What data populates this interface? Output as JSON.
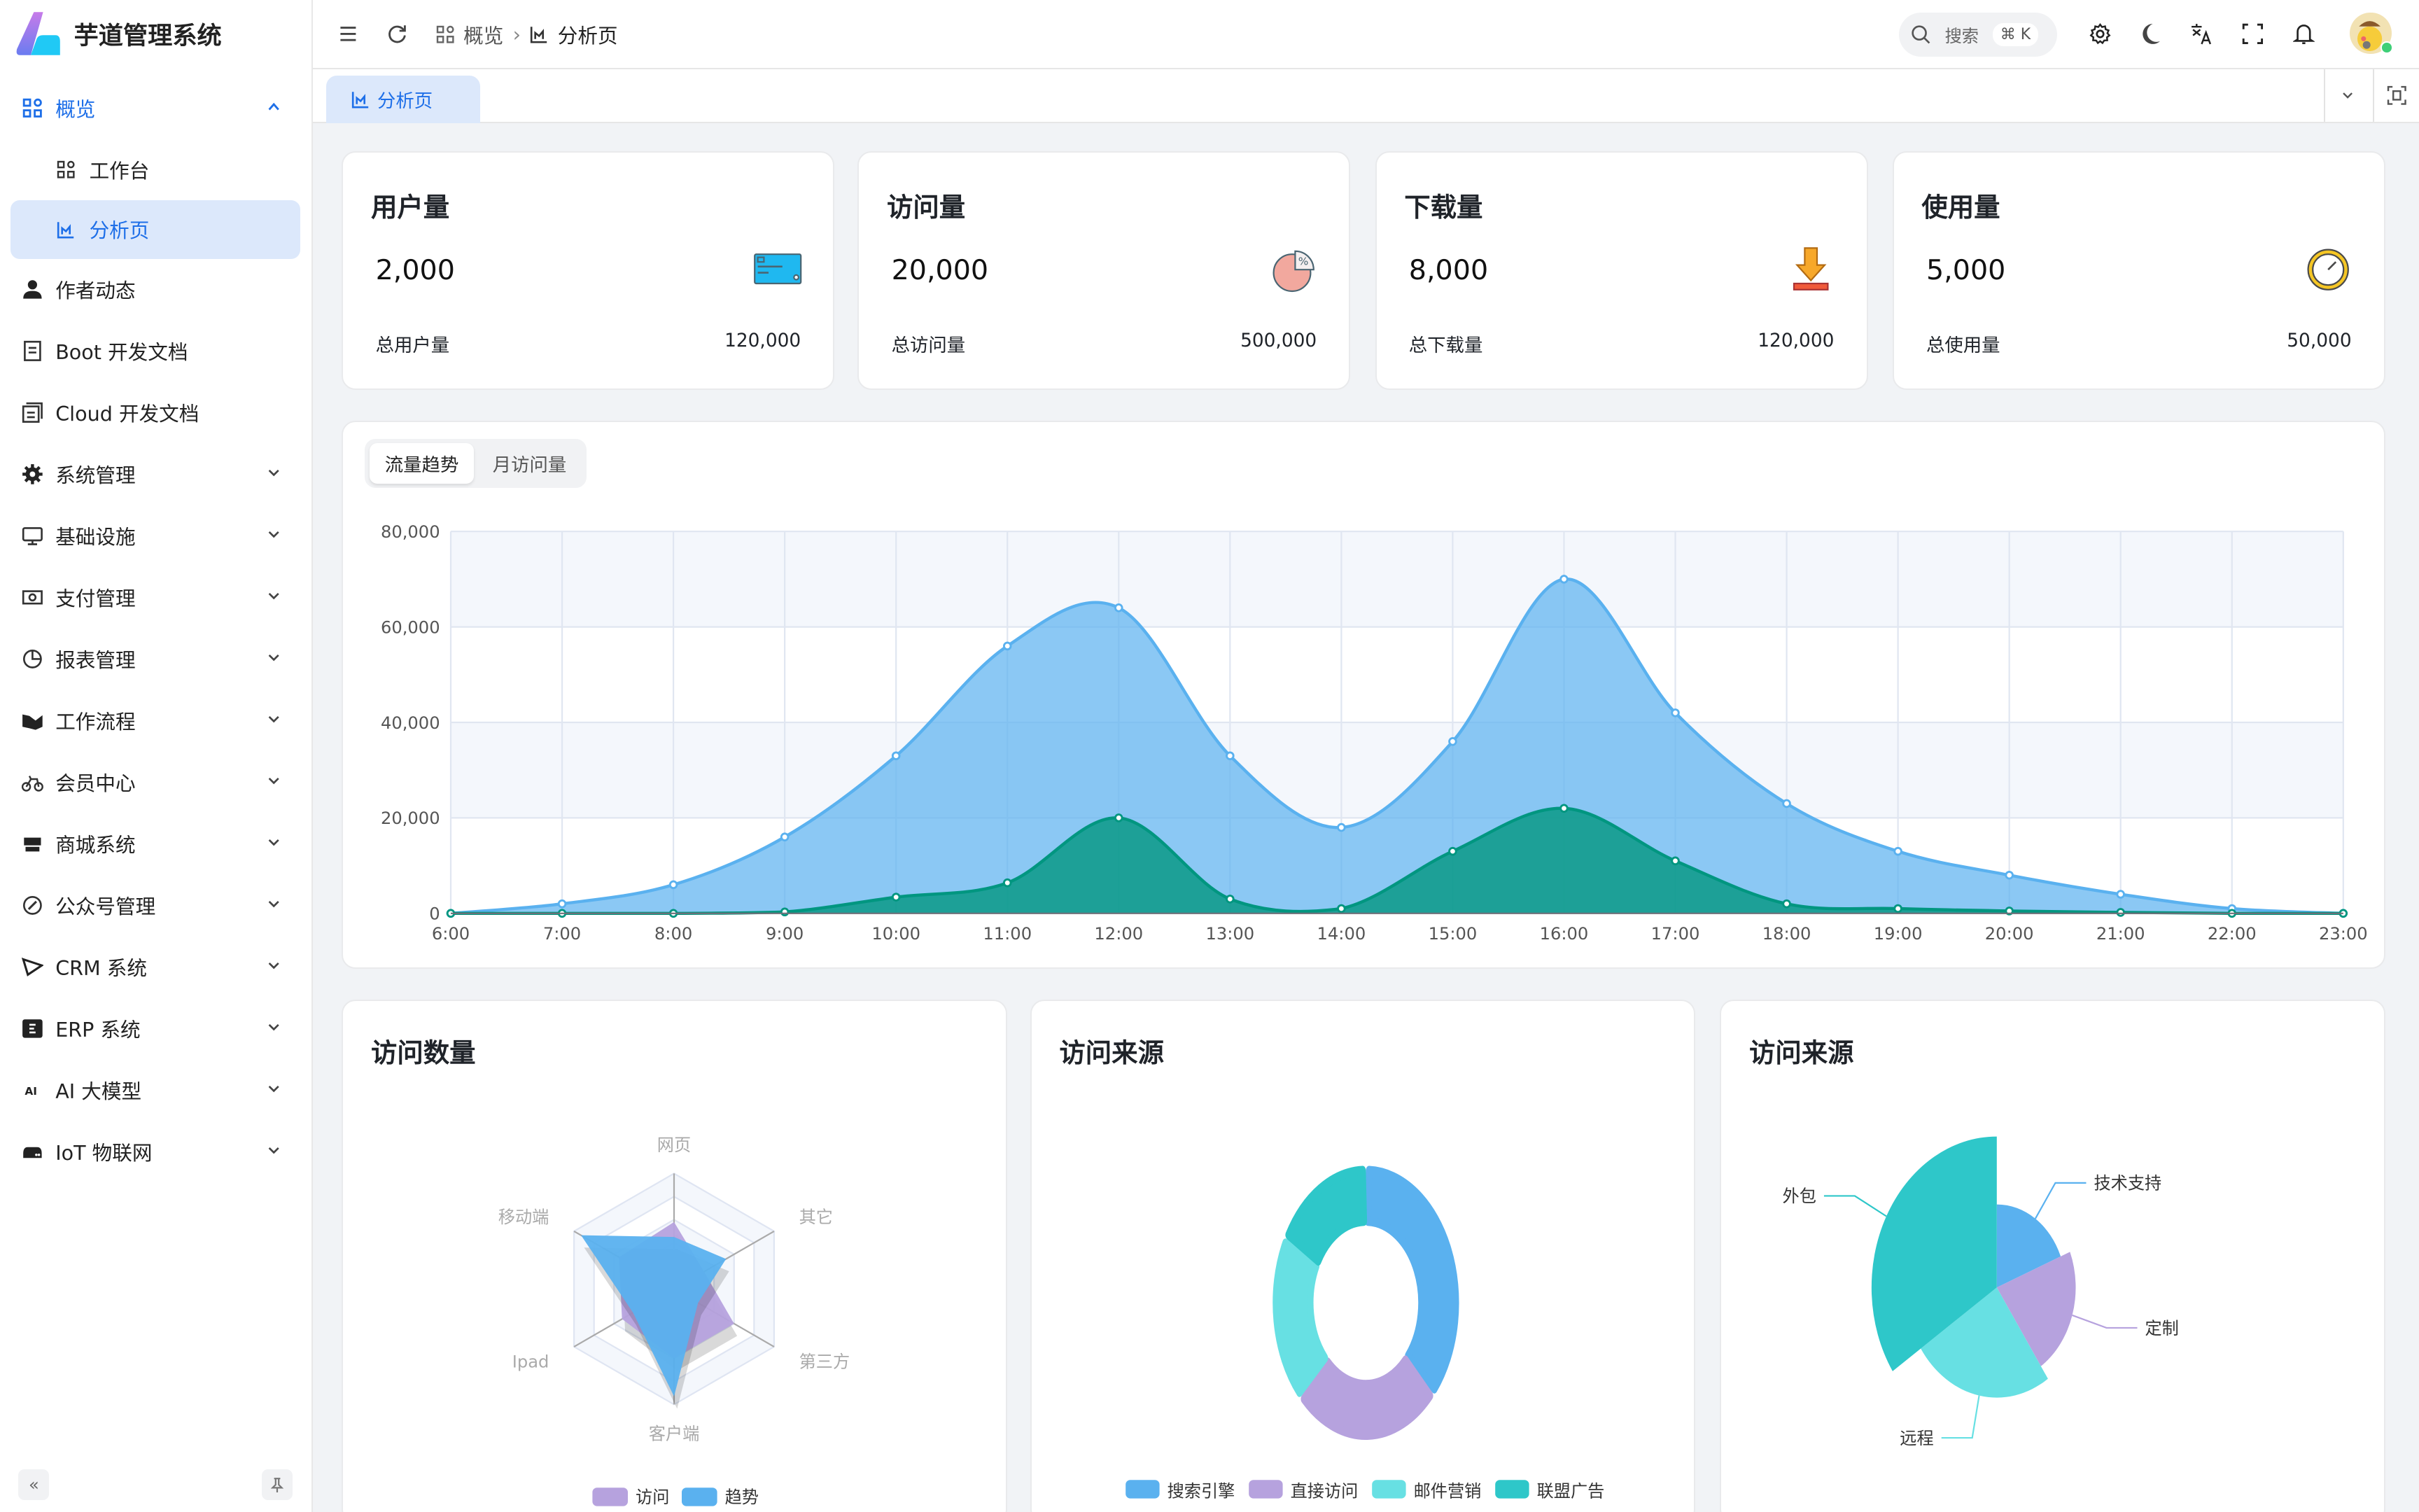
{
  "app": {
    "title": "芋道管理系统"
  },
  "sidebar": {
    "items": [
      {
        "label": "概览",
        "icon": "dashboard-icon",
        "expanded": true,
        "children": [
          {
            "label": "工作台",
            "icon": "grid-icon"
          },
          {
            "label": "分析页",
            "icon": "chart-icon",
            "active": true
          }
        ]
      },
      {
        "label": "作者动态",
        "icon": "user-icon"
      },
      {
        "label": "Boot 开发文档",
        "icon": "document-icon"
      },
      {
        "label": "Cloud 开发文档",
        "icon": "document-stack-icon"
      },
      {
        "label": "系统管理",
        "icon": "gear-icon"
      },
      {
        "label": "基础设施",
        "icon": "monitor-icon"
      },
      {
        "label": "支付管理",
        "icon": "money-icon"
      },
      {
        "label": "报表管理",
        "icon": "pie-icon"
      },
      {
        "label": "工作流程",
        "icon": "workflow-icon"
      },
      {
        "label": "会员中心",
        "icon": "bicycle-icon"
      },
      {
        "label": "商城系统",
        "icon": "shop-icon"
      },
      {
        "label": "公众号管理",
        "icon": "compass-icon"
      },
      {
        "label": "CRM 系统",
        "icon": "crm-icon"
      },
      {
        "label": "ERP 系统",
        "icon": "erp-icon"
      },
      {
        "label": "AI 大模型",
        "icon": "ai-icon"
      },
      {
        "label": "IoT 物联网",
        "icon": "router-icon"
      }
    ]
  },
  "header": {
    "breadcrumb": [
      "概览",
      "分析页"
    ],
    "search_placeholder": "搜索",
    "search_shortcut": "⌘ K"
  },
  "tabs": [
    {
      "label": "分析页",
      "active": true
    }
  ],
  "stats": [
    {
      "title": "用户量",
      "value": "2,000",
      "total_label": "总用户量",
      "total": "120,000",
      "icon": "credit-card-icon"
    },
    {
      "title": "访问量",
      "value": "20,000",
      "total_label": "总访问量",
      "total": "500,000",
      "icon": "percent-pie-icon"
    },
    {
      "title": "下载量",
      "value": "8,000",
      "total_label": "总下载量",
      "total": "120,000",
      "icon": "download-icon"
    },
    {
      "title": "使用量",
      "value": "5,000",
      "total_label": "总使用量",
      "total": "50,000",
      "icon": "clock-icon"
    }
  ],
  "trend": {
    "tabs": [
      "流量趋势",
      "月访问量"
    ],
    "active_tab": 0
  },
  "colors": {
    "primary": "#1e6fe8",
    "blue": "#5ab1ef",
    "green": "#019680",
    "purple": "#b6a2de",
    "cyan": "#67e0e3",
    "teal": "#2ec7c9"
  },
  "chart_data": [
    {
      "type": "area",
      "x": [
        "6:00",
        "7:00",
        "8:00",
        "9:00",
        "10:00",
        "11:00",
        "12:00",
        "13:00",
        "14:00",
        "15:00",
        "16:00",
        "17:00",
        "18:00",
        "19:00",
        "20:00",
        "21:00",
        "22:00",
        "23:00"
      ],
      "yticks": [
        "0",
        "20,000",
        "40,000",
        "60,000",
        "80,000"
      ],
      "ylim": [
        0,
        80000
      ],
      "grid": true,
      "series": [
        {
          "values": [
            0,
            2000,
            6000,
            16000,
            33000,
            56000,
            64000,
            33000,
            18000,
            36000,
            70000,
            42000,
            23000,
            13000,
            8000,
            4000,
            1000,
            0
          ],
          "color": "#5ab1ef"
        },
        {
          "values": [
            0,
            0,
            0,
            300,
            3400,
            6400,
            20000,
            3000,
            1000,
            13000,
            22000,
            11000,
            2000,
            1000,
            500,
            200,
            0,
            0
          ],
          "color": "#019680"
        }
      ]
    },
    {
      "type": "radar",
      "title": "访问数量",
      "indicators": [
        "网页",
        "其它",
        "第三方",
        "客户端",
        "Ipad",
        "移动端"
      ],
      "max": 100,
      "series": [
        {
          "name": "访问",
          "values": [
            58,
            30,
            60,
            60,
            52,
            55
          ],
          "color": "#b6a2de"
        },
        {
          "name": "趋势",
          "values": [
            45,
            52,
            24,
            93,
            41,
            93
          ],
          "color": "#5ab1ef"
        }
      ],
      "legend": "bottom"
    },
    {
      "type": "pie",
      "variant": "donut",
      "title": "访问来源",
      "categories": [
        "搜索引擎",
        "直接访问",
        "邮件营销",
        "联盟广告"
      ],
      "values": [
        1048,
        735,
        580,
        484
      ],
      "colors": [
        "#5ab1ef",
        "#b6a2de",
        "#67e0e3",
        "#2ec7c9"
      ],
      "legend": "bottom"
    },
    {
      "type": "pie",
      "variant": "rose",
      "title": "访问来源",
      "categories": [
        "技术支持",
        "定制",
        "远程",
        "外包"
      ],
      "values": [
        275,
        315,
        365,
        500
      ],
      "colors": [
        "#5ab1ef",
        "#b6a2de",
        "#67e0e3",
        "#2ec7c9"
      ]
    }
  ]
}
